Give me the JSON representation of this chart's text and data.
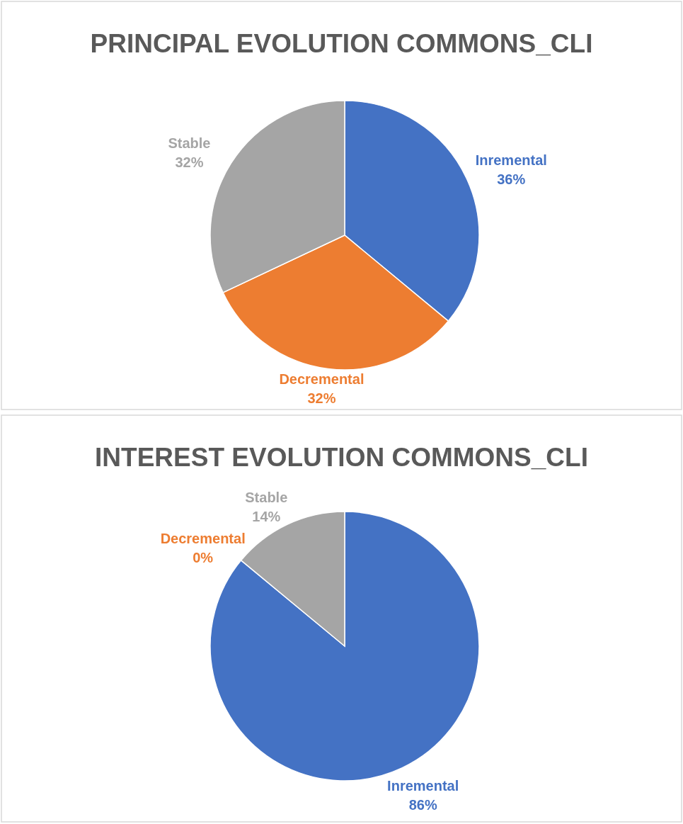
{
  "chart_data": [
    {
      "type": "pie",
      "title": "PRINCIPAL EVOLUTION COMMONS_CLI",
      "categories": [
        "Inremental",
        "Decremental",
        "Stable"
      ],
      "values": [
        36,
        32,
        32
      ],
      "colors": [
        "#4472c4",
        "#ed7d31",
        "#a5a5a5"
      ],
      "value_labels": [
        "36%",
        "32%",
        "32%"
      ]
    },
    {
      "type": "pie",
      "title": "INTEREST EVOLUTION COMMONS_CLI",
      "categories": [
        "Inremental",
        "Decremental",
        "Stable"
      ],
      "values": [
        86,
        0,
        14
      ],
      "colors": [
        "#4472c4",
        "#ed7d31",
        "#a5a5a5"
      ],
      "value_labels": [
        "86%",
        "0%",
        "14%"
      ]
    }
  ]
}
